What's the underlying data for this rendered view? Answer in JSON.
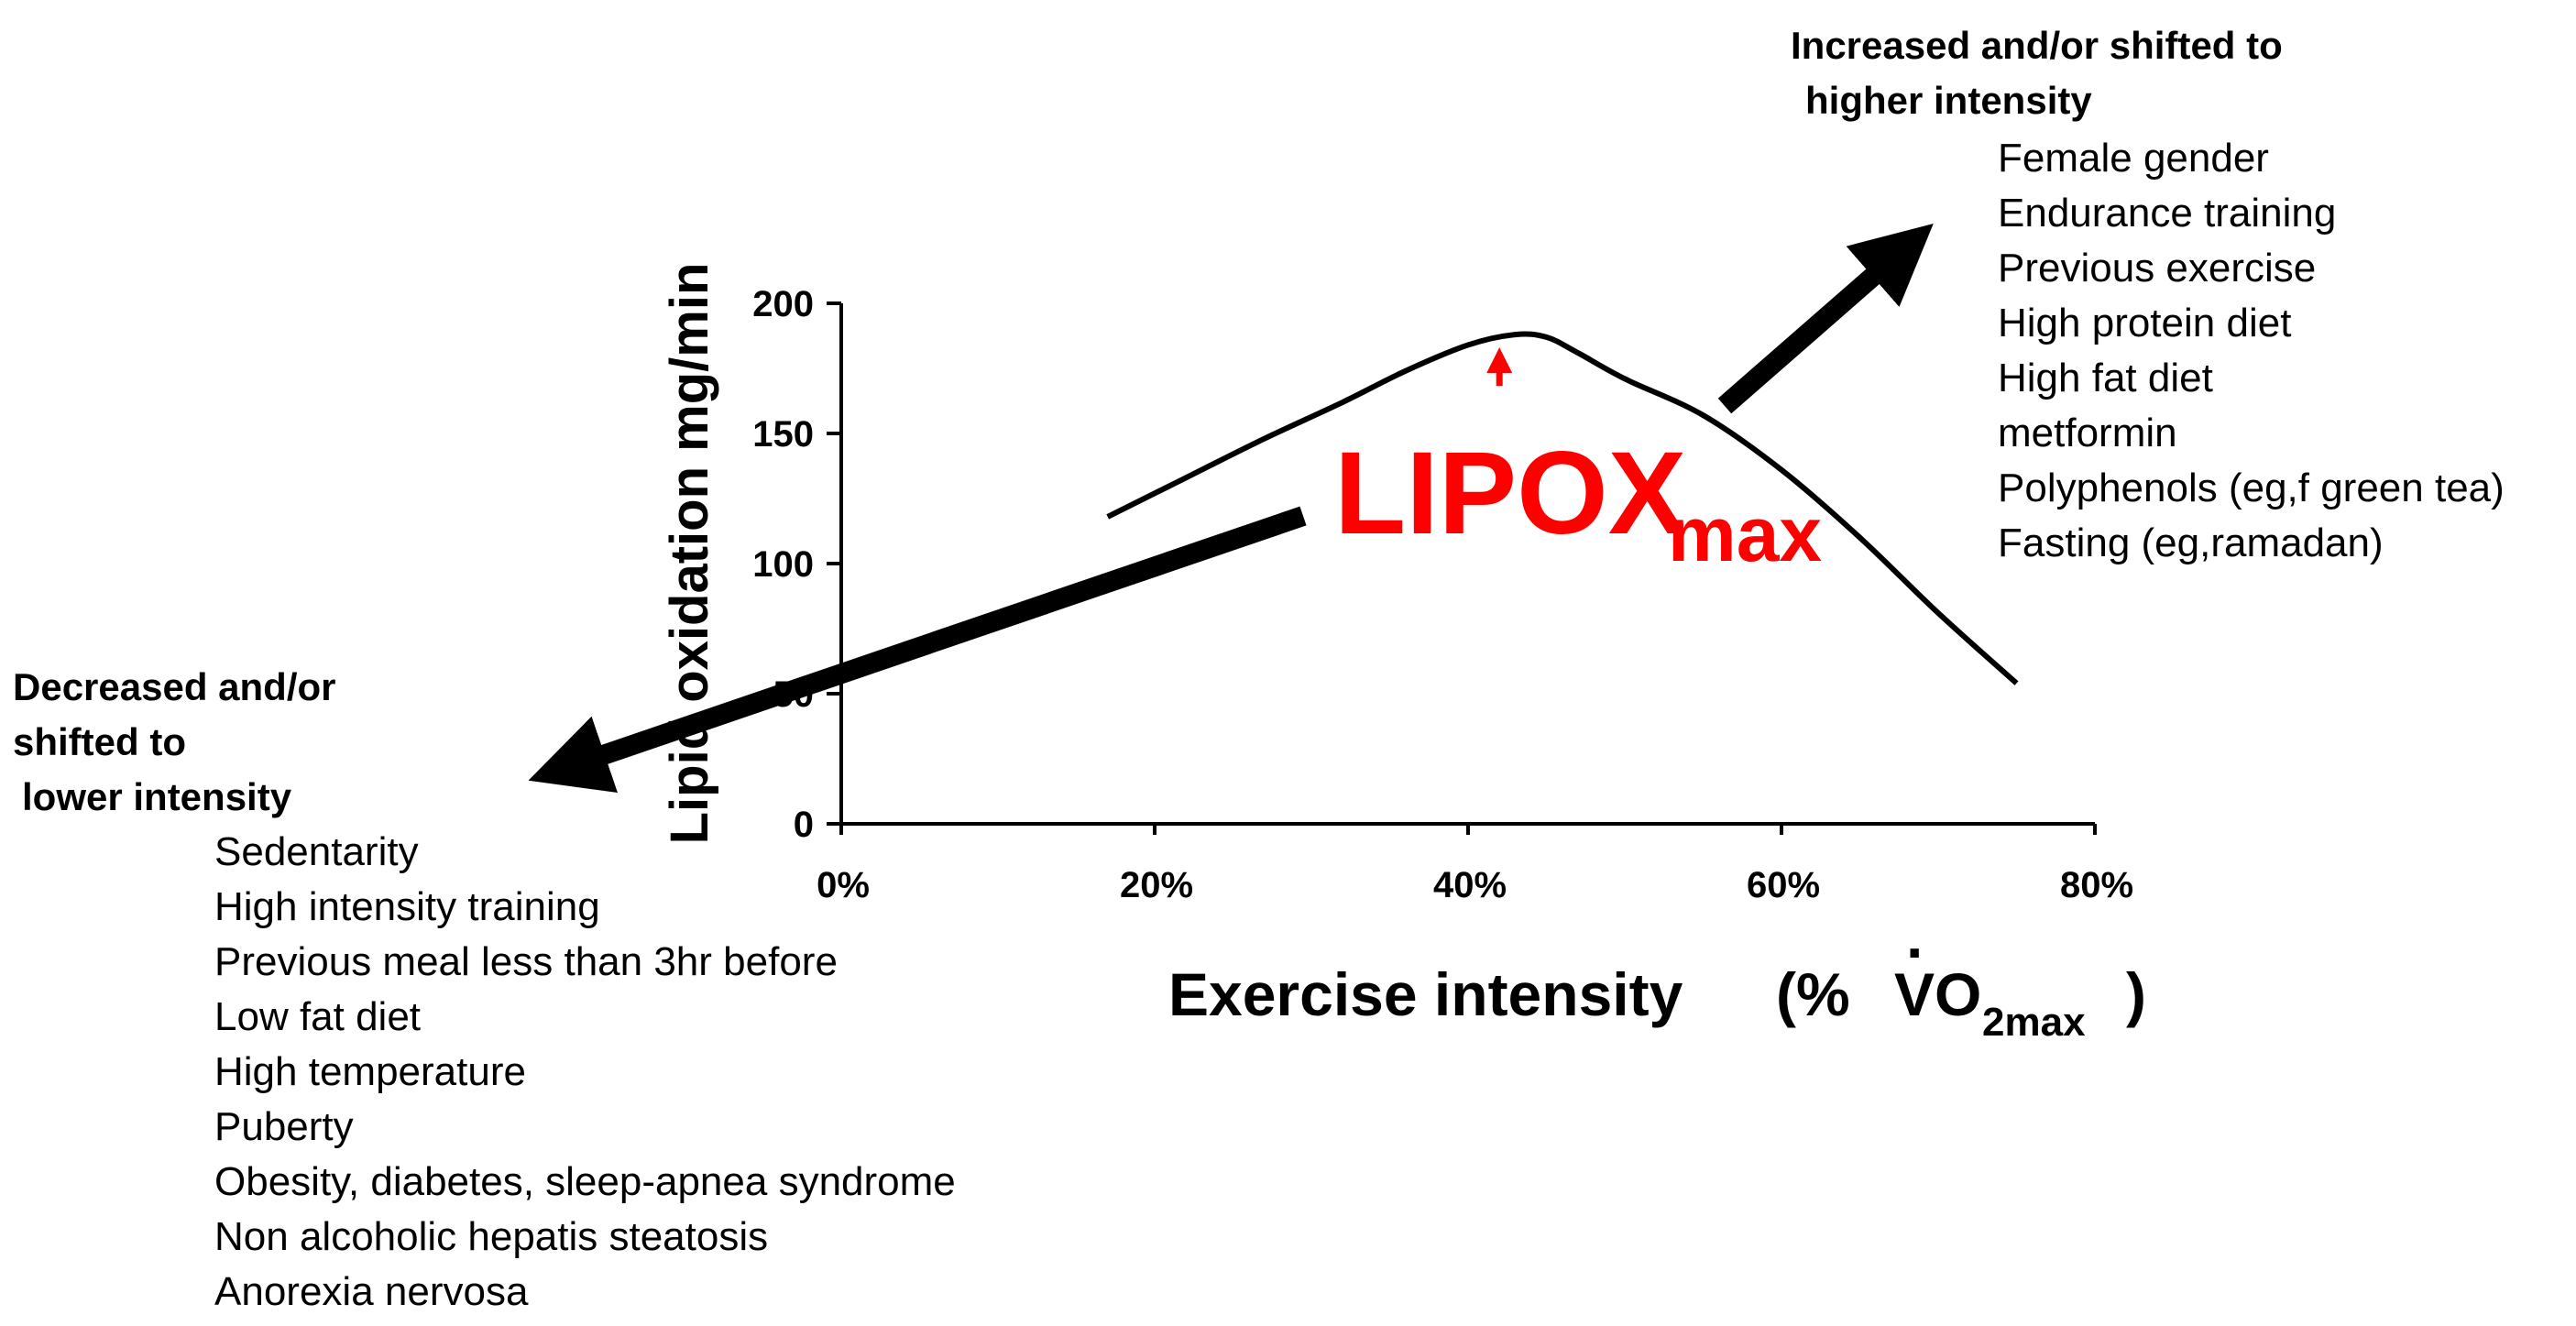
{
  "chart_data": {
    "type": "line",
    "title": "",
    "xlabel_main": "Exercise intensity",
    "xlabel_paren_open": "(%",
    "xlabel_var": "V",
    "xlabel_var_dot": "·",
    "xlabel_sub": "O",
    "xlabel_subscript": "2max",
    "xlabel_paren_close": ")",
    "ylabel": "Lipid oxidation mg/min",
    "xlim": [
      0,
      80
    ],
    "ylim": [
      0,
      200
    ],
    "x_ticks": [
      0,
      20,
      40,
      60,
      80
    ],
    "x_tick_labels": [
      "0%",
      "20%",
      "40%",
      "60%",
      "80%"
    ],
    "y_ticks": [
      0,
      50,
      100,
      150,
      200
    ],
    "y_tick_labels": [
      "0",
      "50",
      "100",
      "150",
      "200"
    ],
    "series": [
      {
        "name": "Lipid oxidation",
        "x": [
          17,
          22,
          27,
          32,
          36,
          40,
          43,
          45,
          47,
          50,
          55,
          60,
          65,
          70,
          75
        ],
        "y": [
          118,
          133,
          148,
          162,
          174,
          184,
          188,
          187,
          181,
          171,
          157,
          136,
          110,
          81,
          54
        ]
      }
    ],
    "annotations": {
      "peak_label_main": "LIPOX",
      "peak_label_sub": "max",
      "peak_x": 42,
      "peak_y": 188,
      "peak_color": "#ff0000"
    }
  },
  "increased": {
    "heading_line1": "Increased and/or shifted to",
    "heading_line2": "higher intensity",
    "items": [
      "Female gender",
      "Endurance training",
      "Previous exercise",
      "High protein diet",
      "High fat diet",
      "metformin",
      "Polyphenols (eg,f green tea)",
      "Fasting (eg,ramadan)"
    ]
  },
  "decreased": {
    "heading_line1": "Decreased and/or",
    "heading_line2": "shifted to",
    "heading_line3": "lower intensity",
    "items": [
      "Sedentarity",
      "High intensity training",
      "Previous meal less than 3hr before",
      "Low fat diet",
      "High temperature",
      "Puberty",
      "Obesity, diabetes, sleep-apnea syndrome",
      "Non alcoholic hepatis steatosis",
      "Anorexia nervosa"
    ]
  }
}
